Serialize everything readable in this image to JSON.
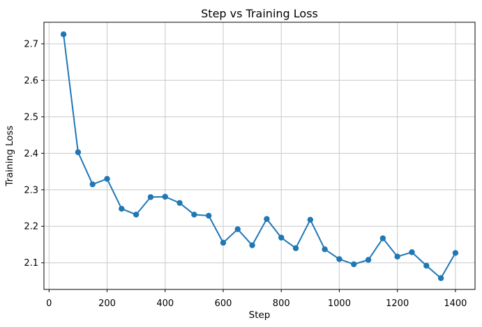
{
  "figure": {
    "background": "#ffffff"
  },
  "chart_data": {
    "type": "line",
    "title": "Step vs Training Loss",
    "xlabel": "Step",
    "ylabel": "Training Loss",
    "x": [
      50,
      100,
      150,
      200,
      250,
      300,
      350,
      400,
      450,
      500,
      550,
      600,
      650,
      700,
      750,
      800,
      850,
      900,
      950,
      1000,
      1050,
      1100,
      1150,
      1200,
      1250,
      1300,
      1350,
      1400
    ],
    "series": [
      {
        "name": "training-loss",
        "values": [
          2.726,
          2.403,
          2.315,
          2.33,
          2.248,
          2.232,
          2.28,
          2.281,
          2.264,
          2.232,
          2.229,
          2.155,
          2.192,
          2.148,
          2.22,
          2.169,
          2.14,
          2.218,
          2.137,
          2.11,
          2.096,
          2.108,
          2.167,
          2.117,
          2.129,
          2.092,
          2.058,
          2.127
        ]
      }
    ],
    "xticks": [
      0,
      200,
      400,
      600,
      800,
      1000,
      1200,
      1400
    ],
    "yticks": [
      2.1,
      2.2,
      2.3,
      2.4,
      2.5,
      2.6,
      2.7
    ],
    "xlim": [
      -17.5,
      1467.5
    ],
    "ylim": [
      2.027,
      2.759
    ],
    "grid": true,
    "legend": "none",
    "marker": "circle",
    "line_color": "#1f77b4",
    "grid_color": "#c8c8c8",
    "axis_color": "#000000"
  }
}
